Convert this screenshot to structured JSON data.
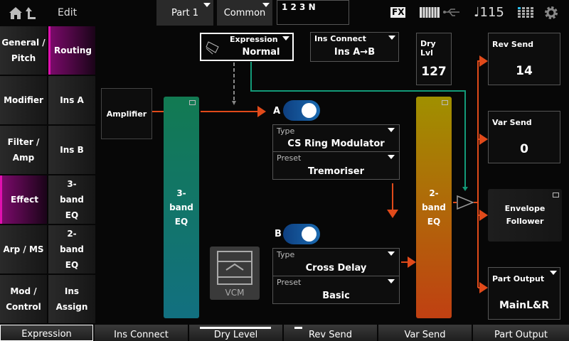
{
  "header": {
    "title": "Edit",
    "part": "Part 1",
    "common": "Common",
    "name": "1 2 3 N",
    "fx": "FX",
    "tempo": "♩115",
    "icons": [
      "home-icon",
      "back-icon",
      "keyboard-icon",
      "usb-icon",
      "grid-icon",
      "gear-icon"
    ]
  },
  "left_tabs": [
    {
      "label": "General / Pitch"
    },
    {
      "label": "Modifier"
    },
    {
      "label": "Filter / Amp"
    },
    {
      "label": "Effect",
      "active": true
    },
    {
      "label": "Arp / MS"
    },
    {
      "label": "Mod / Control"
    }
  ],
  "sub_tabs": [
    {
      "label": "Routing",
      "active": true
    },
    {
      "label": "Ins A"
    },
    {
      "label": "Ins B"
    },
    {
      "label": "3-band EQ"
    },
    {
      "label": "2-band EQ"
    },
    {
      "label": "Ins Assign"
    }
  ],
  "routing": {
    "expression": {
      "label": "Expression",
      "value": "Normal"
    },
    "ins_connect": {
      "label": "Ins Connect",
      "value": "Ins A→B"
    },
    "dry_level": {
      "label": "Dry Lvl",
      "value": "127"
    },
    "rev_send": {
      "label": "Rev Send",
      "value": "14"
    },
    "var_send": {
      "label": "Var Send",
      "value": "0"
    },
    "envelope_follower": "Envelope Follower",
    "part_output": {
      "label": "Part Output",
      "value": "MainL&R"
    },
    "amplifier": "Amplifier",
    "eq3": "3-band EQ",
    "eq2": "2-band EQ",
    "vcm": "VCM",
    "ins_a": {
      "label": "A",
      "on": true,
      "type_label": "Type",
      "type": "CS Ring Modulator",
      "preset_label": "Preset",
      "preset": "Tremoriser"
    },
    "ins_b": {
      "label": "B",
      "on": true,
      "type_label": "Type",
      "type": "Cross Delay",
      "preset_label": "Preset",
      "preset": "Basic"
    }
  },
  "colors": {
    "signal": "#e04a1a",
    "control": "#139a78",
    "accent": "#d010a0"
  },
  "bottom_tabs": [
    {
      "label": "Expression",
      "selected": true
    },
    {
      "label": "Ins Connect"
    },
    {
      "label": "Dry Level",
      "level": 1.0
    },
    {
      "label": "Rev Send",
      "level": 0.11
    },
    {
      "label": "Var Send"
    },
    {
      "label": "Part Output"
    }
  ]
}
